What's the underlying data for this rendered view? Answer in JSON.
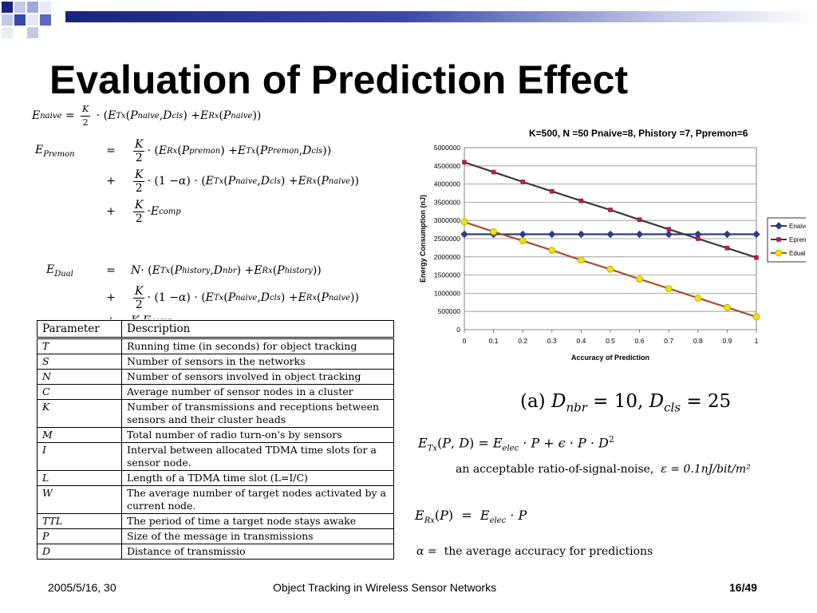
{
  "slide": {
    "title": "Evaluation of Prediction Effect"
  },
  "equations": {
    "naive_lhs": "E",
    "naive_lhs_sub": "naive",
    "premon_lhs_sub": "Premon",
    "dual_lhs_sub": "Dual",
    "caption": "(a)",
    "caption_eq": "D",
    "caption_sub1": "nbr",
    "caption_mid": " = 10, ",
    "caption_sub2": "cls",
    "caption_end": " = 25",
    "tx_note": "an acceptable ratio-of-signal-noise,",
    "tx_note_eq": "ε = 0.1nJ/bit/m²",
    "alpha_note": "the average accuracy for predictions"
  },
  "table": {
    "headers": [
      "Parameter",
      "Description"
    ],
    "rows": [
      [
        "T",
        "Running time (in seconds) for object tracking"
      ],
      [
        "S",
        "Number of sensors in the networks"
      ],
      [
        "N",
        "Number of sensors involved in object tracking"
      ],
      [
        "C",
        "Average number of sensor nodes in a cluster"
      ],
      [
        "K",
        "Number of transmissions and receptions between sensors and their cluster heads"
      ],
      [
        "M",
        "Total number of radio turn-on's by sensors"
      ],
      [
        "I",
        "Interval between allocated TDMA time slots for a sensor node."
      ],
      [
        "L",
        "Length of a TDMA time slot (L=I/C)"
      ],
      [
        "W",
        "The average number of target nodes activated by a current node."
      ],
      [
        "TTL",
        "The period of time a target node stays awake"
      ],
      [
        "P",
        "Size of the message in transmissions"
      ],
      [
        "D",
        "Distance of transmissio"
      ]
    ]
  },
  "chart_data": {
    "type": "line",
    "title": "K=500, N =50 Pnaive=8, Phistory =7, Ppremon=6",
    "xlabel": "Accuracy of Prediction",
    "ylabel": "Energy Consumption (nJ)",
    "xlim": [
      0,
      1
    ],
    "ylim": [
      0,
      5000000
    ],
    "x": [
      0,
      0.1,
      0.2,
      0.3,
      0.4,
      0.5,
      0.6,
      0.7,
      0.8,
      0.9,
      1
    ],
    "x_tick_labels": [
      "0",
      "0.1",
      "0.2",
      "0.3",
      "0.4",
      "0.5",
      "0.6",
      "0.7",
      "0.8",
      "0.9",
      "1"
    ],
    "y_ticks": [
      0,
      500000,
      1000000,
      1500000,
      2000000,
      2500000,
      3000000,
      3500000,
      4000000,
      4500000,
      5000000
    ],
    "grid": true,
    "legend_position": "right",
    "series": [
      {
        "name": "Enaive",
        "color": "#2e3a87",
        "marker": "diamond",
        "values": [
          2620000,
          2620000,
          2620000,
          2620000,
          2620000,
          2620000,
          2620000,
          2620000,
          2620000,
          2620000,
          2620000
        ]
      },
      {
        "name": "Epremon",
        "color": "#c2185b",
        "marker": "square",
        "values": [
          4600000,
          4330000,
          4060000,
          3800000,
          3540000,
          3290000,
          3020000,
          2760000,
          2500000,
          2240000,
          1980000
        ]
      },
      {
        "name": "Edual",
        "color": "#f2e000",
        "marker": "circle",
        "values": [
          2960000,
          2690000,
          2440000,
          2180000,
          1910000,
          1660000,
          1390000,
          1130000,
          870000,
          610000,
          350000
        ]
      }
    ]
  },
  "footer": {
    "date": "2005/5/16, 30",
    "center": "Object Tracking in Wireless Sensor Networks",
    "page": "16/49"
  }
}
